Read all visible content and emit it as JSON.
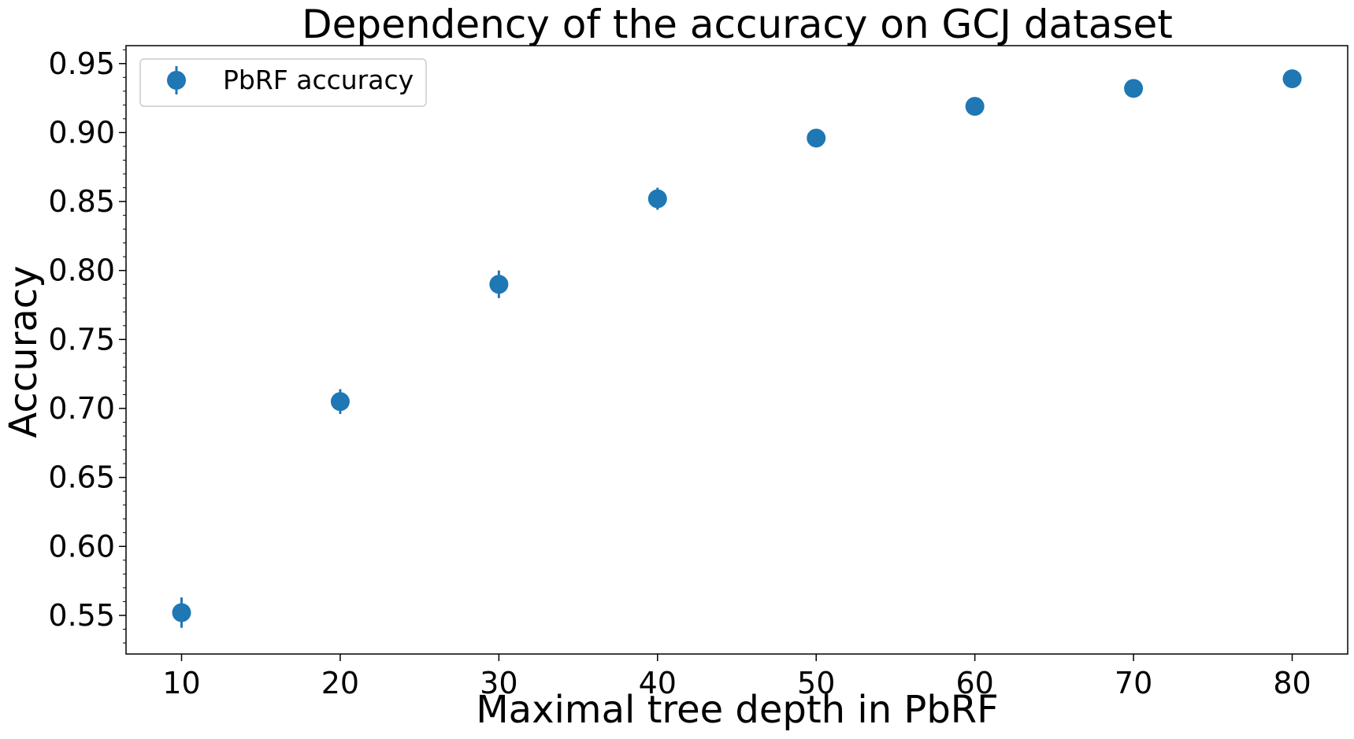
{
  "chart_data": {
    "type": "scatter",
    "title": "Dependency of the accuracy on GCJ dataset",
    "xlabel": "Maximal tree depth in PbRF",
    "ylabel": "Accuracy",
    "xlim": [
      6.5,
      83.5
    ],
    "ylim": [
      0.522,
      0.963
    ],
    "xticks": [
      10,
      20,
      30,
      40,
      50,
      60,
      70,
      80
    ],
    "yticks": [
      0.55,
      0.6,
      0.65,
      0.7,
      0.75,
      0.8,
      0.85,
      0.9,
      0.95
    ],
    "ytick_labels": [
      "0.55",
      "0.60",
      "0.65",
      "0.70",
      "0.75",
      "0.80",
      "0.85",
      "0.90",
      "0.95"
    ],
    "grid": false,
    "legend": {
      "position": "top-left"
    },
    "series": [
      {
        "name": "PbRF accuracy",
        "color": "#1f77b4",
        "error_bars": true,
        "points": [
          {
            "x": 10,
            "y": 0.552,
            "err": 0.011
          },
          {
            "x": 20,
            "y": 0.705,
            "err": 0.009
          },
          {
            "x": 30,
            "y": 0.79,
            "err": 0.01
          },
          {
            "x": 40,
            "y": 0.852,
            "err": 0.008
          },
          {
            "x": 50,
            "y": 0.896,
            "err": 0.004
          },
          {
            "x": 60,
            "y": 0.919,
            "err": 0.004
          },
          {
            "x": 70,
            "y": 0.932,
            "err": 0.003
          },
          {
            "x": 80,
            "y": 0.939,
            "err": 0.003
          }
        ]
      }
    ]
  }
}
